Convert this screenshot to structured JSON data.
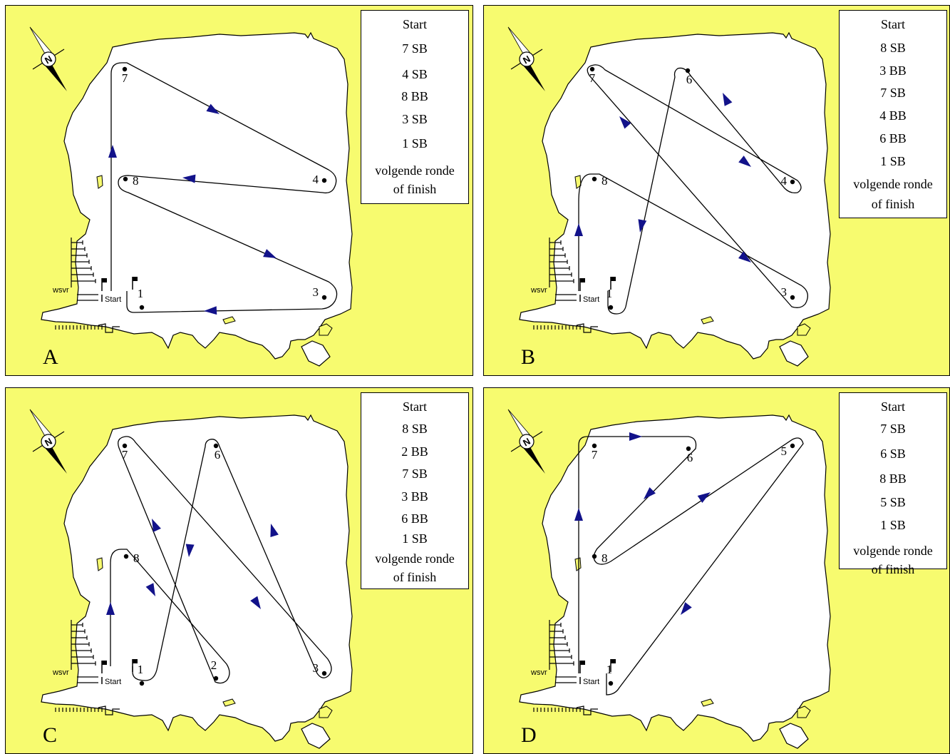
{
  "labels": {
    "start": "Start",
    "club": "wsvr",
    "north": "N"
  },
  "colors": {
    "background": "#f7fb6f",
    "lake": "#ffffff",
    "arrow": "#12128a"
  },
  "panels": [
    {
      "letter": "A",
      "legend": [
        "Start",
        "7 SB",
        "4 SB",
        "8 BB",
        "3 SB",
        "1 SB",
        "volgende ronde",
        "of finish"
      ],
      "buoys": [
        {
          "id": "7",
          "label": "7"
        },
        {
          "id": "4",
          "label": "4"
        },
        {
          "id": "8",
          "label": "8"
        },
        {
          "id": "3",
          "label": "3"
        },
        {
          "id": "1",
          "label": "1"
        }
      ]
    },
    {
      "letter": "B",
      "legend": [
        "Start",
        "8 SB",
        "3 BB",
        "7 SB",
        "4 BB",
        "6 BB",
        "1 SB",
        "volgende ronde",
        "of finish"
      ],
      "buoys": [
        {
          "id": "7",
          "label": "7"
        },
        {
          "id": "6",
          "label": "6"
        },
        {
          "id": "4",
          "label": "4"
        },
        {
          "id": "8",
          "label": "8"
        },
        {
          "id": "3",
          "label": "3"
        },
        {
          "id": "1",
          "label": "1"
        }
      ]
    },
    {
      "letter": "C",
      "legend": [
        "Start",
        "8 SB",
        "2 BB",
        "7 SB",
        "3 BB",
        "6 BB",
        "1 SB",
        "volgende ronde",
        "of finish"
      ],
      "buoys": [
        {
          "id": "7",
          "label": "7"
        },
        {
          "id": "6",
          "label": "6"
        },
        {
          "id": "8",
          "label": "8"
        },
        {
          "id": "2",
          "label": "2"
        },
        {
          "id": "3",
          "label": "3"
        },
        {
          "id": "1",
          "label": "1"
        }
      ]
    },
    {
      "letter": "D",
      "legend": [
        "Start",
        "7 SB",
        "6 SB",
        "8 BB",
        "5 SB",
        "1 SB",
        "volgende ronde",
        "of finish"
      ],
      "buoys": [
        {
          "id": "7",
          "label": "7"
        },
        {
          "id": "6",
          "label": "6"
        },
        {
          "id": "5",
          "label": "5"
        },
        {
          "id": "8",
          "label": "8"
        },
        {
          "id": "1",
          "label": "1"
        }
      ]
    }
  ]
}
